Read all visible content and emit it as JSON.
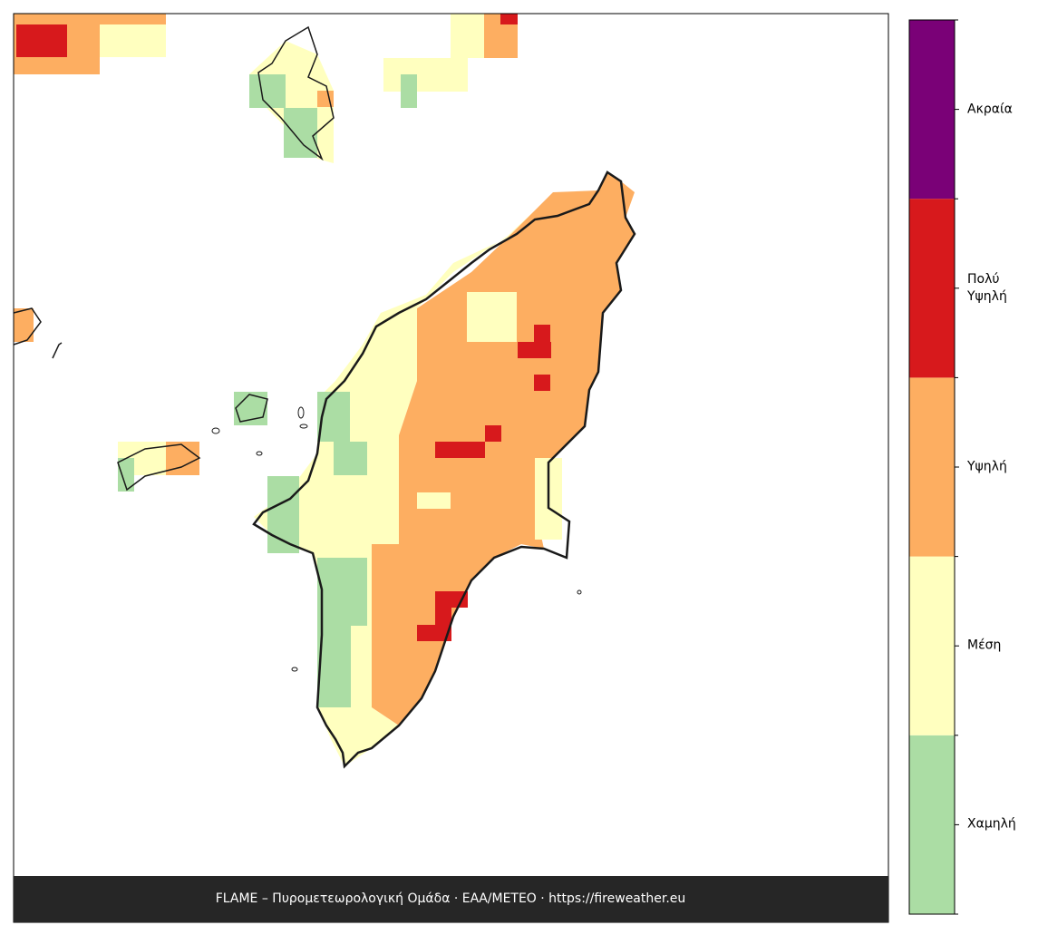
{
  "legend": {
    "levels": [
      {
        "label": "Χαμηλή",
        "color": "#abdda4"
      },
      {
        "label": "Μέση",
        "color": "#ffffbf"
      },
      {
        "label": "Υψηλή",
        "color": "#fdae61"
      },
      {
        "label": "Πολύ Υψηλή",
        "color": "#d7191c"
      },
      {
        "label": "Ακραία",
        "color": "#7a0177"
      }
    ]
  },
  "footer": "FLAME – Πυρομετεωρολογική Ομάδα · ΕΑΑ/METEO · https://fireweather.eu"
}
